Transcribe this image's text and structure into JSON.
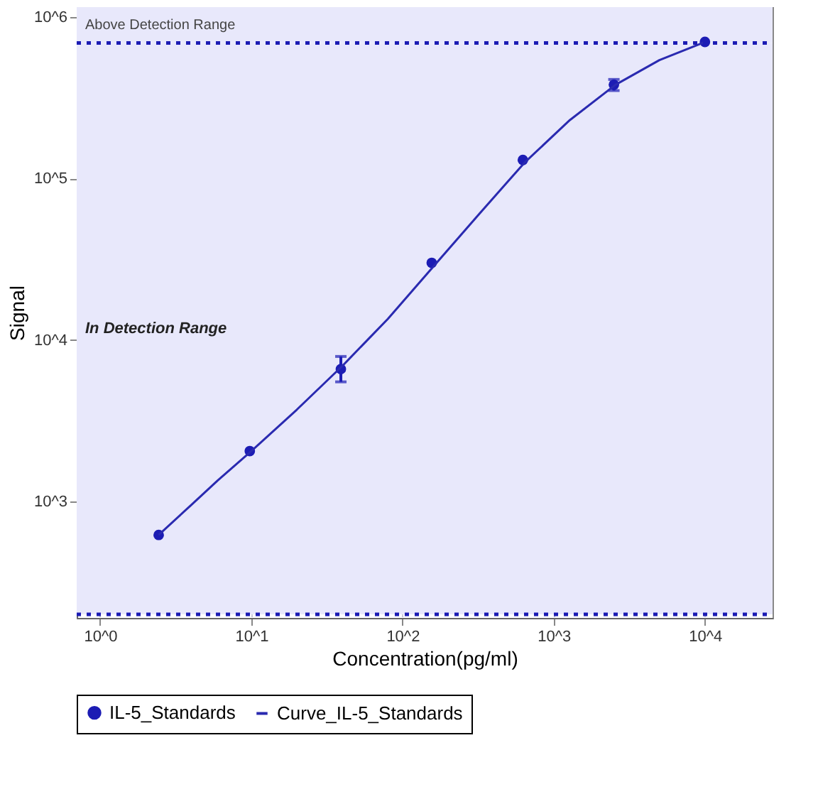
{
  "chart_data": {
    "type": "scatter",
    "xlabel": "Concentration(pg/ml)",
    "ylabel": "Signal",
    "log": "xy",
    "grid": true,
    "legend": "bottom",
    "marker": "circle",
    "xlim": [
      0.7,
      28000
    ],
    "ylim": [
      190,
      1150000
    ],
    "xticks": [
      {
        "value": 1,
        "label": "10^0"
      },
      {
        "value": 10,
        "label": "10^1"
      },
      {
        "value": 100,
        "label": "10^2"
      },
      {
        "value": 1000,
        "label": "10^3"
      },
      {
        "value": 10000,
        "label": "10^4"
      }
    ],
    "yticks": [
      {
        "value": 1000,
        "label": "10^3"
      },
      {
        "value": 10000,
        "label": "10^4"
      },
      {
        "value": 100000,
        "label": "10^5"
      },
      {
        "value": 1000000,
        "label": "10^6"
      }
    ],
    "series": [
      {
        "name": "IL-5_Standards",
        "color": "#1c1cb4",
        "x": [
          2.44,
          9.77,
          39.1,
          156,
          625,
          2500,
          10000
        ],
        "values": [
          620,
          2050,
          6600,
          30000,
          130000,
          380000,
          700000
        ],
        "errors": [
          null,
          null,
          [
            5500,
            7900
          ],
          null,
          null,
          [
            350000,
            410000
          ],
          null
        ]
      },
      {
        "name": "Curve_IL-5_Standards",
        "type": "line",
        "color": "#2a2ab0",
        "line_style": "solid",
        "marker": "none",
        "x": [
          2.44,
          4,
          6,
          10,
          20,
          40,
          80,
          160,
          320,
          640,
          1280,
          2560,
          5000,
          10000
        ],
        "values": [
          620,
          950,
          1350,
          2050,
          3700,
          6900,
          13500,
          28500,
          60000,
          125000,
          230000,
          380000,
          540000,
          700000
        ]
      }
    ],
    "ref_lines": [
      {
        "axis": "y",
        "value": 690000,
        "color": "#1c1cb4",
        "line_style": "dotted"
      },
      {
        "axis": "y",
        "value": 200,
        "color": "#1c1cb4",
        "line_style": "dotted"
      }
    ],
    "bands": [
      {
        "axis": "y",
        "from": 200,
        "to": 690000,
        "label": "In Detection Range",
        "color": "#e8e8fb"
      },
      {
        "axis": "y",
        "from": 690000,
        "to": 1150000,
        "label": "Above Detection Range",
        "color": "#e8e8fb"
      }
    ]
  }
}
